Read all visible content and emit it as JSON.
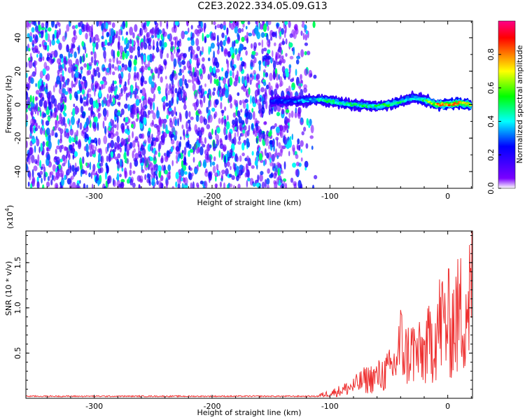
{
  "chart_data": [
    {
      "type": "heatmap",
      "title": "C2E3.2022.334.05.09.G13",
      "xlabel": "Height of straight line (km)",
      "ylabel": "Frequency (Hz)",
      "xlim": [
        -358,
        21
      ],
      "ylim": [
        -50,
        50
      ],
      "x_ticks": [
        -300,
        -200,
        -100,
        0
      ],
      "y_ticks": [
        -40,
        -20,
        0,
        20,
        40
      ],
      "colorbar": {
        "label": "Normalized spectral amplitude",
        "range": [
          0,
          1
        ],
        "ticks": [
          0.0,
          0.2,
          0.4,
          0.6,
          0.8
        ],
        "colors": [
          "#ffffff",
          "#7a00ff",
          "#0000ff",
          "#00ffff",
          "#00ff00",
          "#ffff00",
          "#ff8000",
          "#ff0000",
          "#ff0088"
        ]
      },
      "noise_region": {
        "x": [
          -358,
          -110
        ],
        "y": [
          -50,
          50
        ],
        "amplitude": [
          0.05,
          0.5
        ]
      },
      "signal_ridge": {
        "x": [
          -150,
          -130,
          -110,
          -100,
          -80,
          -60,
          -50,
          -40,
          -30,
          -20,
          -10,
          0,
          10,
          20
        ],
        "y": [
          2,
          2,
          3,
          2,
          0,
          -1,
          0,
          2,
          4,
          3,
          0,
          0,
          1,
          0
        ],
        "amplitude": [
          0.3,
          0.35,
          0.45,
          0.55,
          0.5,
          0.55,
          0.6,
          0.5,
          0.45,
          0.55,
          0.8,
          0.9,
          0.85,
          0.8
        ]
      }
    },
    {
      "type": "line",
      "xlabel": "Height of straight line (km)",
      "ylabel": "SNR (10 * v/v)",
      "y_multiplier": "(x10",
      "y_multiplier_exp": "4",
      "y_multiplier_close": ")",
      "xlim": [
        -358,
        21
      ],
      "ylim": [
        0,
        1.85
      ],
      "x_ticks": [
        -300,
        -200,
        -100,
        0
      ],
      "y_ticks": [
        0.5,
        1.0,
        1.5
      ],
      "y_tick_labels": [
        "0.5",
        "1.0",
        "1.5"
      ],
      "line_color": "#ee3030",
      "series": [
        {
          "x": [
            -358,
            -300,
            -200,
            -120,
            -110,
            -100,
            -90,
            -80,
            -70,
            -60,
            -50,
            -45,
            -40,
            -35,
            -30,
            -25,
            -20,
            -15,
            -10,
            -5,
            0,
            5,
            10,
            15,
            21
          ],
          "y": [
            0.02,
            0.02,
            0.02,
            0.02,
            0.04,
            0.08,
            0.13,
            0.2,
            0.3,
            0.35,
            0.45,
            0.55,
            0.9,
            0.7,
            0.8,
            0.7,
            0.75,
            0.9,
            1.1,
            1.25,
            1.2,
            1.25,
            1.35,
            1.55,
            1.7
          ]
        }
      ]
    }
  ]
}
